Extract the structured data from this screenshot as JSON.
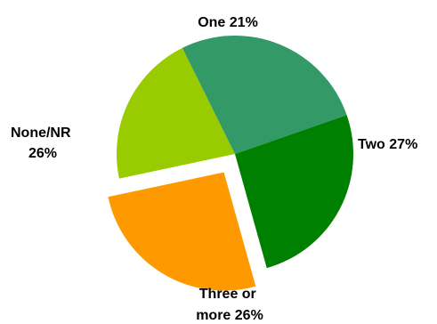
{
  "chart_data": {
    "type": "pie",
    "title": "",
    "slices": [
      {
        "label": "One",
        "pct_text": "21%",
        "value": 21,
        "color": "#99cc00",
        "exploded": false
      },
      {
        "label": "Two",
        "pct_text": "27%",
        "value": 27,
        "color": "#339966",
        "exploded": false
      },
      {
        "label": "Three or more",
        "label_lines": [
          "Three or",
          "more 26%"
        ],
        "value": 26,
        "color": "#008000",
        "exploded": false
      },
      {
        "label": "None/NR",
        "label_lines": [
          "None/NR",
          "26%"
        ],
        "value": 26,
        "color": "#ff9900",
        "exploded": true
      }
    ]
  }
}
